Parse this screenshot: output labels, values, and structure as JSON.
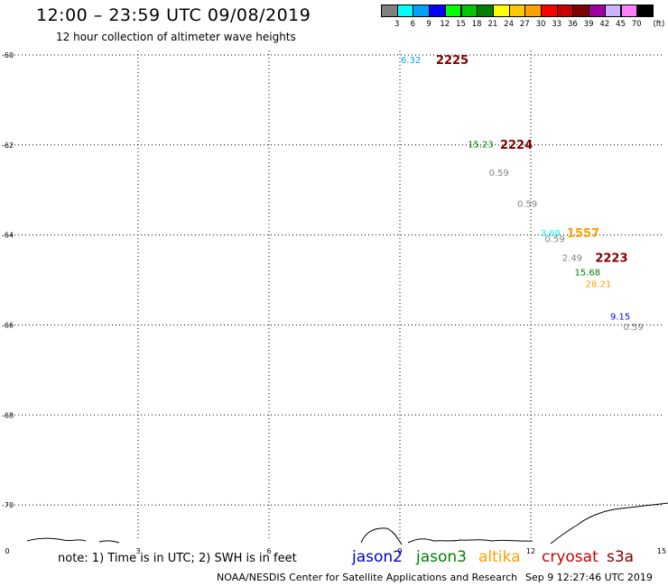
{
  "header": {
    "title": "12:00 – 23:59 UTC 09/08/2019",
    "subtitle": "12 hour collection of altimeter wave heights"
  },
  "colorbar": {
    "unit": "(ft)",
    "colors": [
      "#808080",
      "#00ffff",
      "#00a0ff",
      "#0000ff",
      "#00ff00",
      "#00c800",
      "#008000",
      "#ffff00",
      "#ffc800",
      "#ffa000",
      "#ff0000",
      "#c80000",
      "#800000",
      "#a000a0",
      "#d0b0ff",
      "#ff80ff",
      "#000000"
    ],
    "labels": [
      "3",
      "6",
      "9",
      "12",
      "15",
      "18",
      "21",
      "24",
      "27",
      "30",
      "33",
      "36",
      "39",
      "42",
      "45",
      "70"
    ]
  },
  "chart_data": {
    "type": "scatter",
    "title": "12:00 – 23:59 UTC 09/08/2019",
    "xlim": [
      0,
      15
    ],
    "ylim": [
      -70.8,
      -59.9
    ],
    "x_ticks": [
      "0",
      "3",
      "6",
      "9",
      "12",
      "15"
    ],
    "y_ticks": [
      "-60",
      "-62",
      "-64",
      "-66",
      "-68",
      "-70"
    ],
    "grid": true,
    "wave_heights": [
      {
        "x": 9.25,
        "y": -60.1,
        "text": "6.32",
        "color": "#00a0ff"
      },
      {
        "x": 10.85,
        "y": -61.97,
        "text": "15.23",
        "color": "#008000"
      },
      {
        "x": 11.27,
        "y": -62.6,
        "text": "0.59",
        "color": "#808080"
      },
      {
        "x": 11.92,
        "y": -63.3,
        "text": "0.59",
        "color": "#808080"
      },
      {
        "x": 12.45,
        "y": -63.95,
        "text": "3.69",
        "color": "#00ffff"
      },
      {
        "x": 12.55,
        "y": -64.08,
        "text": "0.59",
        "color": "#808080"
      },
      {
        "x": 12.95,
        "y": -64.5,
        "text": "2.49",
        "color": "#808080"
      },
      {
        "x": 13.3,
        "y": -64.82,
        "text": "15.68",
        "color": "#008000"
      },
      {
        "x": 13.55,
        "y": -65.08,
        "text": "28.21",
        "color": "#ffa000"
      },
      {
        "x": 14.05,
        "y": -65.8,
        "text": "9.15",
        "color": "#0000ff"
      },
      {
        "x": 14.35,
        "y": -66.03,
        "text": "0.59",
        "color": "#808080"
      }
    ],
    "pass_labels": [
      {
        "x": 10.2,
        "y": -60.1,
        "text": "2225",
        "color": "#800000"
      },
      {
        "x": 11.67,
        "y": -61.98,
        "text": "2224",
        "color": "#800000"
      },
      {
        "x": 13.2,
        "y": -63.95,
        "text": "1557",
        "color": "#ffa000"
      },
      {
        "x": 13.85,
        "y": -64.5,
        "text": "2223",
        "color": "#800000"
      }
    ]
  },
  "footer": {
    "note": "note: 1) Time is in UTC; 2) SWH is in feet",
    "satellites": [
      {
        "name": "jason2",
        "color": "#0000cc"
      },
      {
        "name": "jason3",
        "color": "#008000"
      },
      {
        "name": "altika",
        "color": "#ffa000"
      },
      {
        "name": "cryosat",
        "color": "#cc0000"
      },
      {
        "name": "s3a",
        "color": "#800000"
      }
    ],
    "credit": "NOAA/NESDIS Center for Satellite Applications and Research",
    "timestamp": "Sep  9 12:27:46 UTC 2019"
  }
}
